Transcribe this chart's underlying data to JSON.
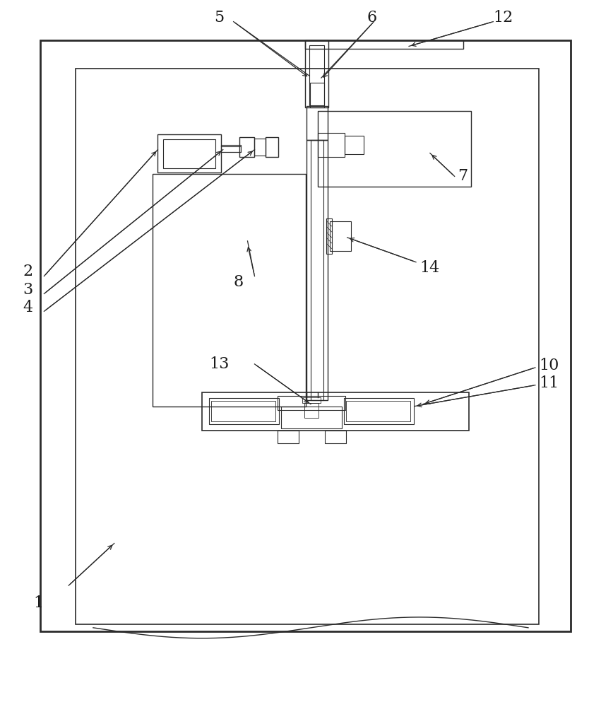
{
  "bg_color": "#ffffff",
  "line_color": "#2a2a2a",
  "label_color": "#1a1a1a",
  "fig_width": 8.68,
  "fig_height": 10.0
}
